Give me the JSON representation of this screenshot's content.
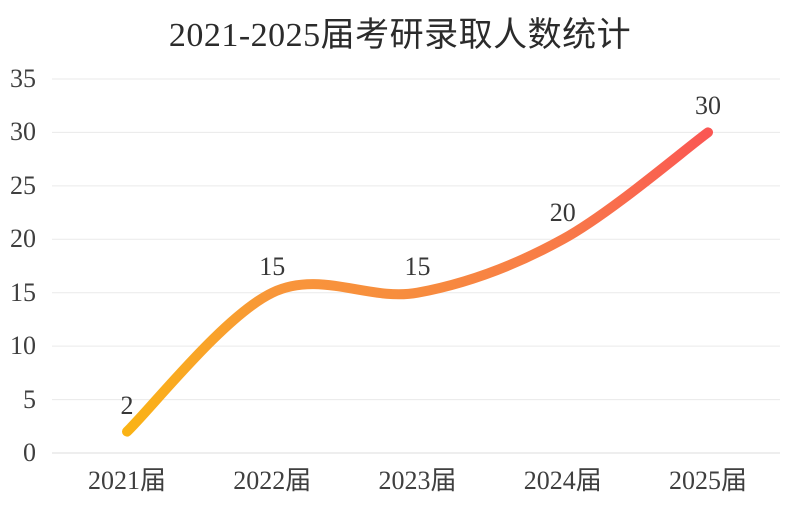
{
  "chart_data": {
    "type": "line",
    "title": "2021-2025届考研录取人数统计",
    "categories": [
      "2021届",
      "2022届",
      "2023届",
      "2024届",
      "2025届"
    ],
    "values": [
      2,
      15,
      15,
      20,
      30
    ],
    "data_labels": [
      "2",
      "15",
      "15",
      "20",
      "30"
    ],
    "xlabel": "",
    "ylabel": "",
    "yticks": [
      0,
      5,
      10,
      15,
      20,
      25,
      30,
      35
    ],
    "ylim": [
      0,
      35
    ],
    "smooth": true,
    "grid": true,
    "legend": "none",
    "line_style": {
      "width": 10,
      "cap": "round",
      "gradient_stops": [
        {
          "offset": 0.0,
          "color": "#FAB315"
        },
        {
          "offset": 0.25,
          "color": "#F8963A"
        },
        {
          "offset": 0.5,
          "color": "#F78C3E"
        },
        {
          "offset": 0.75,
          "color": "#F87A48"
        },
        {
          "offset": 1.0,
          "color": "#FA5753"
        }
      ]
    },
    "colors": {
      "background": "#ffffff",
      "gridline": "#eaeaea",
      "baseline": "#dedede",
      "tick_text": "#3f3f3f",
      "label_text": "#383838",
      "title_text": "#2b2b2b"
    }
  }
}
